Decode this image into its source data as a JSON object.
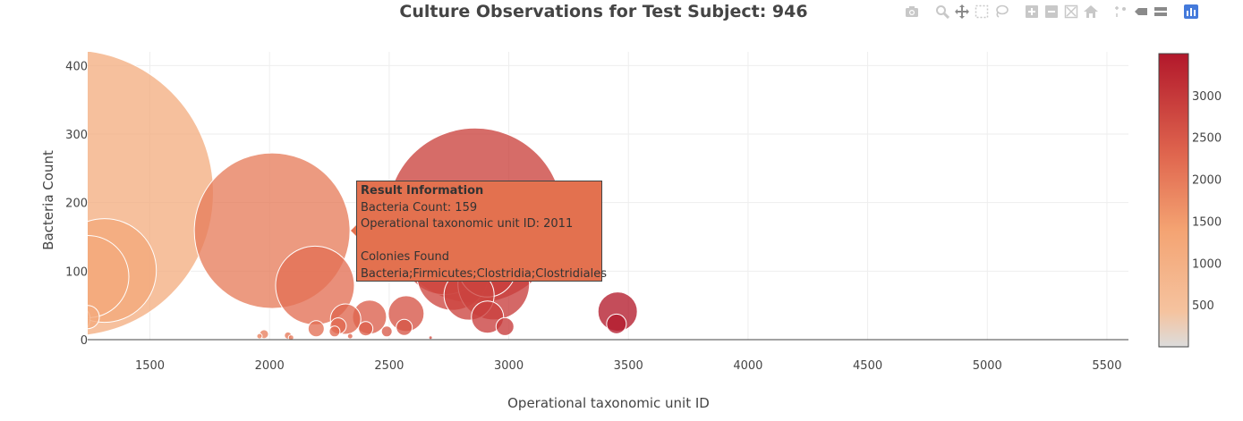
{
  "chart_data": {
    "type": "scatter",
    "title": "Culture Observations for Test Subject: 946",
    "xlabel": "Operational taxonomic unit ID",
    "ylabel": "Bacteria Count",
    "xlim": [
      1240,
      5590
    ],
    "ylim": [
      0,
      420
    ],
    "xticks": [
      1500,
      2000,
      2500,
      3000,
      3500,
      4000,
      4500,
      5000,
      5500
    ],
    "yticks": [
      0,
      100,
      200,
      300,
      400
    ],
    "colorbar": {
      "ticks": [
        500,
        1000,
        1500,
        2000,
        2500,
        3000
      ],
      "range": [
        0,
        3500
      ]
    },
    "series": [
      {
        "points": [
          {
            "x": 1167,
            "y": 214,
            "r": 160
          },
          {
            "x": 1310,
            "y": 101,
            "r": 58
          },
          {
            "x": 1240,
            "y": 92,
            "r": 46
          },
          {
            "x": 1190,
            "y": 30,
            "r": 16
          },
          {
            "x": 1240,
            "y": 33,
            "r": 13
          },
          {
            "x": 2011,
            "y": 159,
            "r": 87
          },
          {
            "x": 2190,
            "y": 79,
            "r": 44
          },
          {
            "x": 2859,
            "y": 181,
            "r": 98
          },
          {
            "x": 2730,
            "y": 127,
            "r": 47
          },
          {
            "x": 2765,
            "y": 95,
            "r": 40
          },
          {
            "x": 2910,
            "y": 104,
            "r": 32
          },
          {
            "x": 2937,
            "y": 81,
            "r": 40
          },
          {
            "x": 2834,
            "y": 65,
            "r": 28
          },
          {
            "x": 2318,
            "y": 30,
            "r": 17
          },
          {
            "x": 2418,
            "y": 33,
            "r": 19
          },
          {
            "x": 2571,
            "y": 38,
            "r": 20
          },
          {
            "x": 2563,
            "y": 18,
            "r": 9
          },
          {
            "x": 2287,
            "y": 20,
            "r": 9
          },
          {
            "x": 2195,
            "y": 16,
            "r": 9
          },
          {
            "x": 2402,
            "y": 16,
            "r": 8
          },
          {
            "x": 2490,
            "y": 12,
            "r": 6
          },
          {
            "x": 2272,
            "y": 12,
            "r": 6
          },
          {
            "x": 2911,
            "y": 33,
            "r": 18
          },
          {
            "x": 2984,
            "y": 19,
            "r": 10
          },
          {
            "x": 3455,
            "y": 41,
            "r": 22
          },
          {
            "x": 3450,
            "y": 23,
            "r": 11
          },
          {
            "x": 1977,
            "y": 8,
            "r": 5
          },
          {
            "x": 1958,
            "y": 5,
            "r": 3
          },
          {
            "x": 2077,
            "y": 6,
            "r": 4
          },
          {
            "x": 2090,
            "y": 3,
            "r": 3
          },
          {
            "x": 2337,
            "y": 5,
            "r": 3
          },
          {
            "x": 2673,
            "y": 3,
            "r": 2
          }
        ]
      }
    ],
    "tooltip": {
      "title": "Result Information",
      "lines": [
        "Bacteria Count: 159",
        "Operational taxonomic unit ID: 2011",
        "",
        "Colonies Found",
        "Bacteria;Firmicutes;Clostridia;Clostridiales"
      ]
    }
  },
  "modebar": [
    "camera-icon",
    "zoom-icon",
    "pan-icon",
    "box-select-icon",
    "lasso-icon",
    "zoom-in-icon",
    "zoom-out-icon",
    "autoscale-icon",
    "reset-axes-icon",
    "spike-lines-icon",
    "hover-closest-icon",
    "hover-compare-icon",
    "plotly-logo-icon"
  ]
}
